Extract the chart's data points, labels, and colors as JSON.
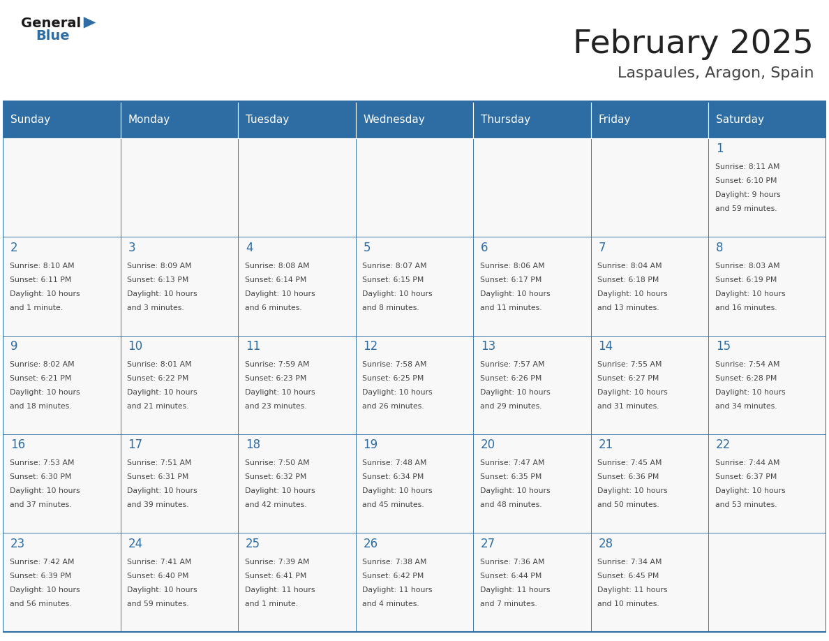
{
  "title": "February 2025",
  "subtitle": "Laspaules, Aragon, Spain",
  "days_of_week": [
    "Sunday",
    "Monday",
    "Tuesday",
    "Wednesday",
    "Thursday",
    "Friday",
    "Saturday"
  ],
  "header_bg_color": "#2E6DA4",
  "header_text_color": "#FFFFFF",
  "cell_bg_color": "#F8F8F8",
  "border_color": "#2E6DA4",
  "day_number_color": "#2E6DA4",
  "info_text_color": "#444444",
  "title_color": "#222222",
  "subtitle_color": "#444444",
  "calendar_data": {
    "1": {
      "sunrise": "8:11 AM",
      "sunset": "6:10 PM",
      "daylight": "9 hours and 59 minutes."
    },
    "2": {
      "sunrise": "8:10 AM",
      "sunset": "6:11 PM",
      "daylight": "10 hours and 1 minute."
    },
    "3": {
      "sunrise": "8:09 AM",
      "sunset": "6:13 PM",
      "daylight": "10 hours and 3 minutes."
    },
    "4": {
      "sunrise": "8:08 AM",
      "sunset": "6:14 PM",
      "daylight": "10 hours and 6 minutes."
    },
    "5": {
      "sunrise": "8:07 AM",
      "sunset": "6:15 PM",
      "daylight": "10 hours and 8 minutes."
    },
    "6": {
      "sunrise": "8:06 AM",
      "sunset": "6:17 PM",
      "daylight": "10 hours and 11 minutes."
    },
    "7": {
      "sunrise": "8:04 AM",
      "sunset": "6:18 PM",
      "daylight": "10 hours and 13 minutes."
    },
    "8": {
      "sunrise": "8:03 AM",
      "sunset": "6:19 PM",
      "daylight": "10 hours and 16 minutes."
    },
    "9": {
      "sunrise": "8:02 AM",
      "sunset": "6:21 PM",
      "daylight": "10 hours and 18 minutes."
    },
    "10": {
      "sunrise": "8:01 AM",
      "sunset": "6:22 PM",
      "daylight": "10 hours and 21 minutes."
    },
    "11": {
      "sunrise": "7:59 AM",
      "sunset": "6:23 PM",
      "daylight": "10 hours and 23 minutes."
    },
    "12": {
      "sunrise": "7:58 AM",
      "sunset": "6:25 PM",
      "daylight": "10 hours and 26 minutes."
    },
    "13": {
      "sunrise": "7:57 AM",
      "sunset": "6:26 PM",
      "daylight": "10 hours and 29 minutes."
    },
    "14": {
      "sunrise": "7:55 AM",
      "sunset": "6:27 PM",
      "daylight": "10 hours and 31 minutes."
    },
    "15": {
      "sunrise": "7:54 AM",
      "sunset": "6:28 PM",
      "daylight": "10 hours and 34 minutes."
    },
    "16": {
      "sunrise": "7:53 AM",
      "sunset": "6:30 PM",
      "daylight": "10 hours and 37 minutes."
    },
    "17": {
      "sunrise": "7:51 AM",
      "sunset": "6:31 PM",
      "daylight": "10 hours and 39 minutes."
    },
    "18": {
      "sunrise": "7:50 AM",
      "sunset": "6:32 PM",
      "daylight": "10 hours and 42 minutes."
    },
    "19": {
      "sunrise": "7:48 AM",
      "sunset": "6:34 PM",
      "daylight": "10 hours and 45 minutes."
    },
    "20": {
      "sunrise": "7:47 AM",
      "sunset": "6:35 PM",
      "daylight": "10 hours and 48 minutes."
    },
    "21": {
      "sunrise": "7:45 AM",
      "sunset": "6:36 PM",
      "daylight": "10 hours and 50 minutes."
    },
    "22": {
      "sunrise": "7:44 AM",
      "sunset": "6:37 PM",
      "daylight": "10 hours and 53 minutes."
    },
    "23": {
      "sunrise": "7:42 AM",
      "sunset": "6:39 PM",
      "daylight": "10 hours and 56 minutes."
    },
    "24": {
      "sunrise": "7:41 AM",
      "sunset": "6:40 PM",
      "daylight": "10 hours and 59 minutes."
    },
    "25": {
      "sunrise": "7:39 AM",
      "sunset": "6:41 PM",
      "daylight": "11 hours and 1 minute."
    },
    "26": {
      "sunrise": "7:38 AM",
      "sunset": "6:42 PM",
      "daylight": "11 hours and 4 minutes."
    },
    "27": {
      "sunrise": "7:36 AM",
      "sunset": "6:44 PM",
      "daylight": "11 hours and 7 minutes."
    },
    "28": {
      "sunrise": "7:34 AM",
      "sunset": "6:45 PM",
      "daylight": "11 hours and 10 minutes."
    }
  },
  "week_layout": [
    [
      null,
      null,
      null,
      null,
      null,
      null,
      1
    ],
    [
      2,
      3,
      4,
      5,
      6,
      7,
      8
    ],
    [
      9,
      10,
      11,
      12,
      13,
      14,
      15
    ],
    [
      16,
      17,
      18,
      19,
      20,
      21,
      22
    ],
    [
      23,
      24,
      25,
      26,
      27,
      28,
      null
    ]
  ]
}
